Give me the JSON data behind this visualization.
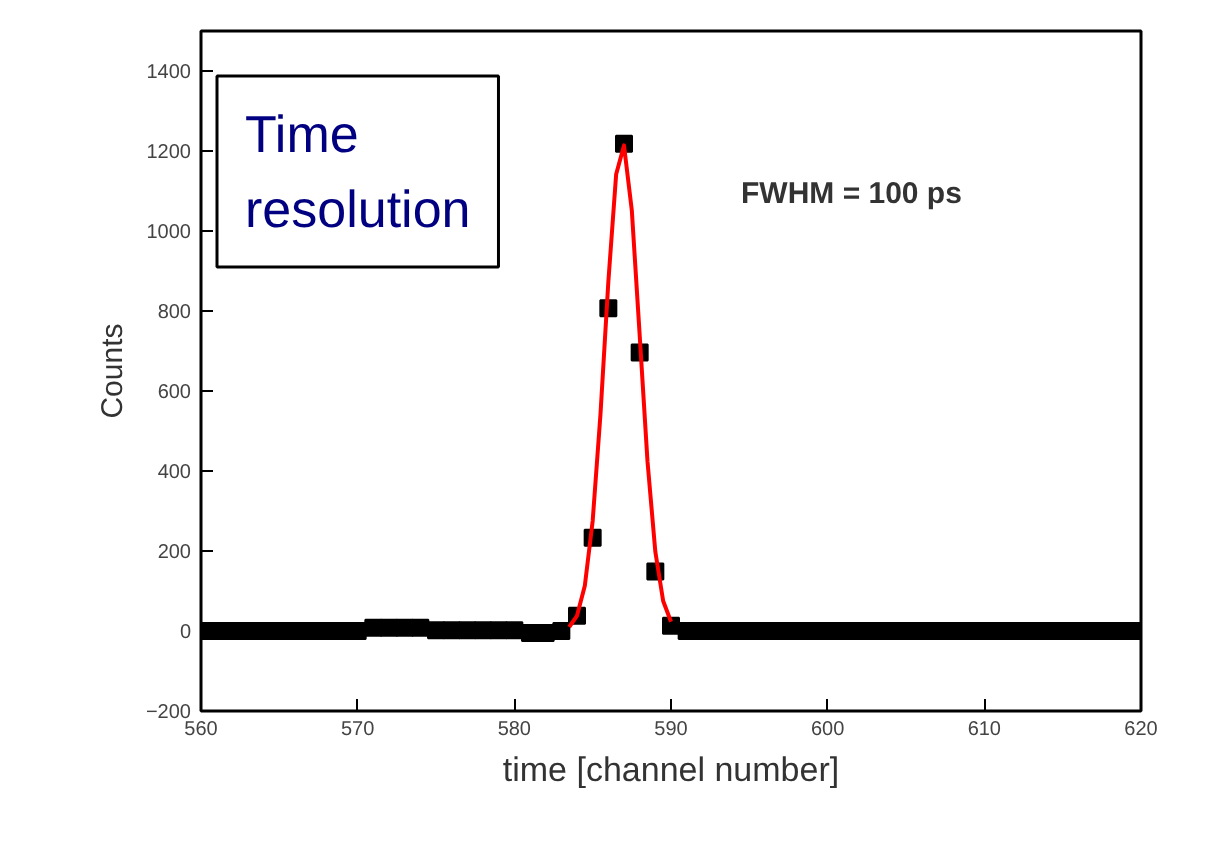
{
  "chart_data": {
    "type": "scatter",
    "xlabel": "time [channel number]",
    "ylabel": "Counts",
    "xlim": [
      560,
      620
    ],
    "xticks": [
      560,
      570,
      580,
      590,
      600,
      610,
      620
    ],
    "ylim": [
      -200,
      1500
    ],
    "yticks": [
      -200,
      0,
      200,
      400,
      600,
      800,
      1000,
      1200,
      1400
    ],
    "grid": false,
    "annotations": [
      "Time\nresolution",
      "FWHM = 100 ps"
    ],
    "series": [
      {
        "color": "#000000",
        "marker": "square",
        "x": [
          560,
          561,
          562,
          563,
          564,
          565,
          566,
          567,
          568,
          569,
          570,
          571,
          572,
          573,
          574,
          575,
          576,
          577,
          578,
          579,
          580,
          581,
          582,
          583,
          584,
          585,
          586,
          587,
          588,
          589,
          590,
          591,
          592,
          593,
          594,
          595,
          596,
          597,
          598,
          599,
          600,
          601,
          602,
          603,
          604,
          605,
          606,
          607,
          608,
          609,
          610,
          611,
          612,
          613,
          614,
          615,
          616,
          617,
          618,
          619,
          620
        ],
        "values": [
          0,
          0,
          0,
          0,
          0,
          0,
          0,
          0,
          0,
          0,
          0,
          8,
          8,
          8,
          8,
          2,
          2,
          2,
          2,
          2,
          2,
          -5,
          -5,
          0,
          38,
          233,
          807,
          1218,
          696,
          149,
          13,
          0,
          0,
          0,
          0,
          0,
          0,
          0,
          0,
          0,
          0,
          0,
          0,
          0,
          0,
          0,
          0,
          0,
          0,
          0,
          0,
          0,
          0,
          0,
          0,
          0,
          0,
          0,
          0,
          0,
          0
        ]
      },
      {
        "type": "line",
        "color": "#ff0000",
        "marker": "none",
        "line_style": "solid",
        "x": [
          583.5,
          584,
          584.5,
          585,
          585.5,
          586,
          586.5,
          587,
          587.5,
          588,
          588.5,
          589,
          589.5,
          590
        ],
        "values": [
          10,
          38,
          113,
          275,
          543,
          873,
          1142,
          1214,
          1051,
          740,
          424,
          198,
          75,
          23
        ]
      }
    ]
  }
}
